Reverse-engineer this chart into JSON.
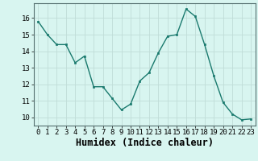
{
  "x": [
    0,
    1,
    2,
    3,
    4,
    5,
    6,
    7,
    8,
    9,
    10,
    11,
    12,
    13,
    14,
    15,
    16,
    17,
    18,
    19,
    20,
    21,
    22,
    23
  ],
  "y": [
    15.8,
    15.0,
    14.4,
    14.4,
    13.3,
    13.7,
    11.85,
    11.85,
    11.15,
    10.45,
    10.8,
    12.2,
    12.7,
    13.9,
    14.9,
    15.0,
    16.55,
    16.1,
    14.4,
    12.5,
    10.9,
    10.2,
    9.85,
    9.9
  ],
  "xlabel": "Humidex (Indice chaleur)",
  "xlim": [
    -0.5,
    23.5
  ],
  "ylim": [
    9.5,
    16.9
  ],
  "yticks": [
    10,
    11,
    12,
    13,
    14,
    15,
    16
  ],
  "xticks": [
    0,
    1,
    2,
    3,
    4,
    5,
    6,
    7,
    8,
    9,
    10,
    11,
    12,
    13,
    14,
    15,
    16,
    17,
    18,
    19,
    20,
    21,
    22,
    23
  ],
  "line_color": "#1a7a6e",
  "marker_color": "#1a7a6e",
  "bg_color": "#d8f5f0",
  "grid_color": "#c0ddd8",
  "tick_label_fontsize": 6.5,
  "xlabel_fontsize": 8.5
}
